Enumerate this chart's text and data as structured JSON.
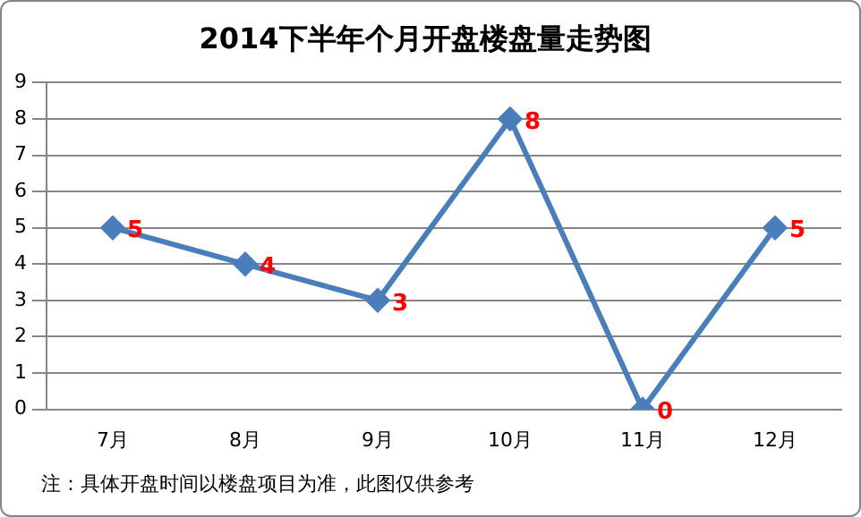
{
  "chart_data": {
    "type": "line",
    "title": "2014下半年个月开盘楼盘量走势图",
    "categories": [
      "7月",
      "8月",
      "9月",
      "10月",
      "11月",
      "12月"
    ],
    "series": [
      {
        "color": "#4a7ebb",
        "values": [
          5,
          4,
          3,
          8,
          0,
          5
        ]
      }
    ],
    "ylim": [
      0,
      9
    ],
    "yticks": [
      0,
      1,
      2,
      3,
      4,
      5,
      6,
      7,
      8,
      9
    ],
    "grid": "y",
    "marker": "diamond",
    "line_style": "solid",
    "data_labels": true,
    "legend": false,
    "annotations": [
      "注：具体开盘时间以楼盘项目为准，此图仅供参考"
    ]
  }
}
